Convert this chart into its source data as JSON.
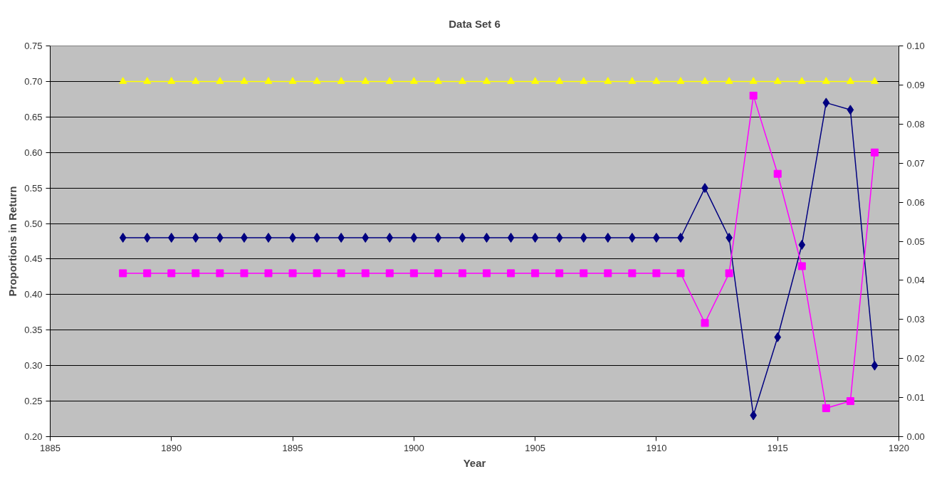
{
  "chart_data": {
    "type": "line",
    "title": "Data Set 6",
    "xlabel": "Year",
    "ylabel": "Proportions in Return",
    "x": [
      1888,
      1889,
      1890,
      1891,
      1892,
      1893,
      1894,
      1895,
      1896,
      1897,
      1898,
      1899,
      1900,
      1901,
      1902,
      1903,
      1904,
      1905,
      1906,
      1907,
      1908,
      1909,
      1910,
      1911,
      1912,
      1913,
      1914,
      1915,
      1916,
      1917,
      1918,
      1919
    ],
    "series": [
      {
        "color": "#000080",
        "marker": "diamond",
        "values": [
          0.48,
          0.48,
          0.48,
          0.48,
          0.48,
          0.48,
          0.48,
          0.48,
          0.48,
          0.48,
          0.48,
          0.48,
          0.48,
          0.48,
          0.48,
          0.48,
          0.48,
          0.48,
          0.48,
          0.48,
          0.48,
          0.48,
          0.48,
          0.48,
          0.55,
          0.48,
          0.23,
          0.34,
          0.47,
          0.67,
          0.66,
          0.3
        ]
      },
      {
        "color": "#ff00ff",
        "marker": "square",
        "values": [
          0.43,
          0.43,
          0.43,
          0.43,
          0.43,
          0.43,
          0.43,
          0.43,
          0.43,
          0.43,
          0.43,
          0.43,
          0.43,
          0.43,
          0.43,
          0.43,
          0.43,
          0.43,
          0.43,
          0.43,
          0.43,
          0.43,
          0.43,
          0.43,
          0.36,
          0.43,
          0.68,
          0.57,
          0.44,
          0.24,
          0.25,
          0.6
        ]
      },
      {
        "color": "#ffff00",
        "marker": "triangle",
        "values": [
          0.7,
          0.7,
          0.7,
          0.7,
          0.7,
          0.7,
          0.7,
          0.7,
          0.7,
          0.7,
          0.7,
          0.7,
          0.7,
          0.7,
          0.7,
          0.7,
          0.7,
          0.7,
          0.7,
          0.7,
          0.7,
          0.7,
          0.7,
          0.7,
          0.7,
          0.7,
          0.7,
          0.7,
          0.7,
          0.7,
          0.7,
          0.7
        ]
      }
    ],
    "xlim": [
      1885,
      1920
    ],
    "xticks": [
      1885,
      1890,
      1895,
      1900,
      1905,
      1910,
      1915,
      1920
    ],
    "ylim": [
      0.2,
      0.75
    ],
    "yticks": [
      {
        "value": 0.2,
        "label": "0.20"
      },
      {
        "value": 0.25,
        "label": "0.25"
      },
      {
        "value": 0.3,
        "label": "0.30"
      },
      {
        "value": 0.35,
        "label": "0.35"
      },
      {
        "value": 0.4,
        "label": "0.40"
      },
      {
        "value": 0.45,
        "label": "0.45"
      },
      {
        "value": 0.5,
        "label": "0.50"
      },
      {
        "value": 0.55,
        "label": "0.55"
      },
      {
        "value": 0.6,
        "label": "0.60"
      },
      {
        "value": 0.65,
        "label": "0.65"
      },
      {
        "value": 0.7,
        "label": "0.70"
      },
      {
        "value": 0.75,
        "label": "0.75"
      }
    ],
    "y2lim": [
      0.0,
      0.1
    ],
    "y2ticks": [
      {
        "value": 0.0,
        "label": "0.00"
      },
      {
        "value": 0.01,
        "label": "0.01"
      },
      {
        "value": 0.02,
        "label": "0.02"
      },
      {
        "value": 0.03,
        "label": "0.03"
      },
      {
        "value": 0.04,
        "label": "0.04"
      },
      {
        "value": 0.05,
        "label": "0.05"
      },
      {
        "value": 0.06,
        "label": "0.06"
      },
      {
        "value": 0.07,
        "label": "0.07"
      },
      {
        "value": 0.08,
        "label": "0.08"
      },
      {
        "value": 0.09,
        "label": "0.09"
      },
      {
        "value": 0.1,
        "label": "0.10"
      }
    ],
    "grid": "y"
  }
}
